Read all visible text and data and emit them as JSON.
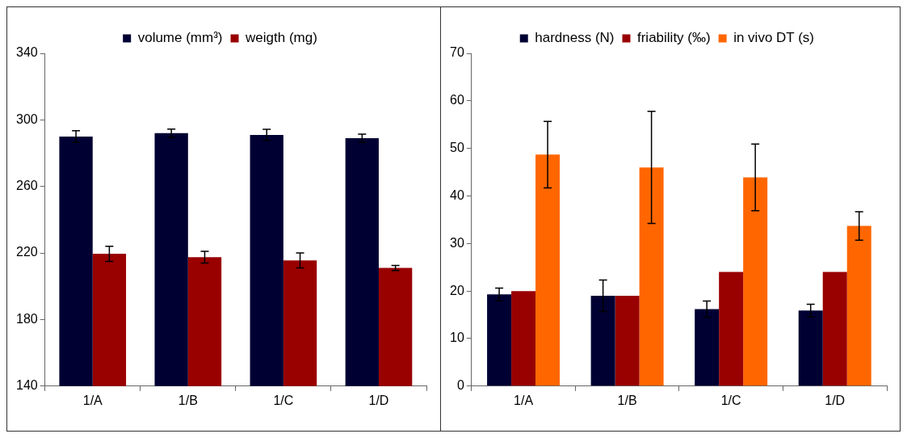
{
  "chart_data": [
    {
      "type": "bar",
      "categories": [
        "1/A",
        "1/B",
        "1/C",
        "1/D"
      ],
      "ylim": [
        140,
        340
      ],
      "yticks": [
        140,
        180,
        220,
        260,
        300,
        340
      ],
      "grid": false,
      "legend": "top",
      "series": [
        {
          "name": "volume (mm³)",
          "color": "#000033",
          "values": [
            290,
            292,
            291,
            289
          ],
          "errors": [
            3.5,
            2.5,
            3.3,
            2.4
          ]
        },
        {
          "name": "weigth (mg)",
          "color": "#990000",
          "values": [
            219.5,
            217.5,
            215.5,
            211
          ],
          "errors": [
            4.5,
            3.5,
            4.5,
            1.5
          ]
        }
      ]
    },
    {
      "type": "bar",
      "categories": [
        "1/A",
        "1/B",
        "1/C",
        "1/D"
      ],
      "ylim": [
        0,
        70
      ],
      "yticks": [
        0,
        10,
        20,
        30,
        40,
        50,
        60,
        70
      ],
      "grid": false,
      "legend": "top",
      "series": [
        {
          "name": "hardness (N)",
          "color": "#000033",
          "values": [
            19.3,
            19,
            16.2,
            15.9
          ],
          "errors": [
            1.3,
            3.3,
            1.7,
            1.3
          ]
        },
        {
          "name": "friability (‰)",
          "color": "#990000",
          "values": [
            20,
            19,
            24,
            24
          ]
        },
        {
          "name": "in vivo DT (s)",
          "color": "#ff6600",
          "values": [
            48.7,
            46,
            43.9,
            33.7
          ],
          "errors": [
            7,
            11.8,
            7,
            3
          ]
        }
      ]
    }
  ]
}
